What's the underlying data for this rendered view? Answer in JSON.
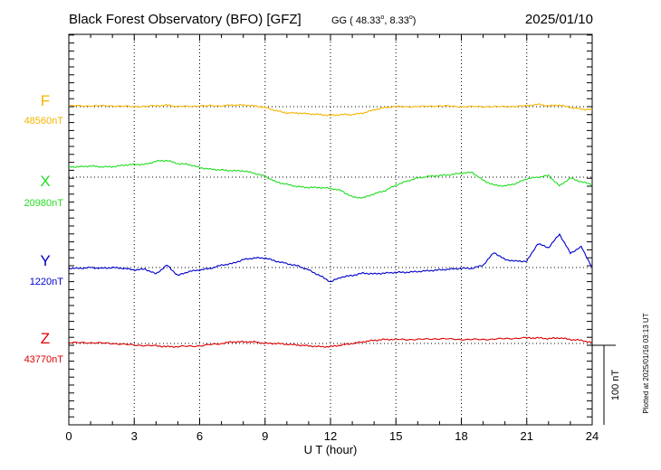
{
  "header": {
    "title": "Black Forest Observatory (BFO)  [GFZ]",
    "coord_prefix": "GG ( 48.33",
    "coord_mid": ",   8.33",
    "coord_end": ")",
    "degree": "o",
    "date": "2025/01/10"
  },
  "footer": {
    "plotted": "Plotted at 2025/01/16 03:13 UT"
  },
  "colors": {
    "F": "#f5b400",
    "X": "#22dd22",
    "Y": "#0000cc",
    "Z": "#dd0000",
    "axis": "#000000"
  },
  "chart_data": {
    "type": "line",
    "xlabel": "U T (hour)",
    "x_ticks": [
      "0",
      "3",
      "6",
      "9",
      "12",
      "15",
      "18",
      "21",
      "24"
    ],
    "xlim": [
      0,
      24
    ],
    "scale_bar_label": "100 nT",
    "scale_bar_value_nT": 100,
    "grid": true,
    "series": [
      {
        "name": "F",
        "baseline": "48560nT",
        "baseline_value": 48560,
        "x": [
          0,
          1,
          2,
          3,
          4,
          4.5,
          5,
          6,
          7,
          7.5,
          8,
          8.5,
          9,
          9.5,
          10,
          10.5,
          11,
          11.5,
          12,
          12.5,
          13,
          13.5,
          14,
          14.5,
          15,
          16,
          17,
          18,
          19,
          20,
          21,
          21.5,
          22,
          22.5,
          23,
          23.5,
          24
        ],
        "offset_nT": [
          1,
          1,
          1,
          0,
          1,
          2,
          0,
          1,
          1,
          2,
          2,
          1,
          -1,
          -5,
          -8,
          -8,
          -9,
          -10,
          -11,
          -10,
          -10,
          -8,
          -4,
          -1,
          0,
          0,
          1,
          0,
          0,
          0,
          1,
          3,
          1,
          2,
          -1,
          -3,
          -4
        ]
      },
      {
        "name": "X",
        "baseline": "20980nT",
        "baseline_value": 20980,
        "x": [
          0,
          0.5,
          1,
          1.5,
          2,
          2.5,
          3,
          3.5,
          4,
          4.5,
          5,
          5.5,
          6,
          6.5,
          7,
          7.5,
          8,
          8.5,
          9,
          9.5,
          10,
          10.5,
          11,
          11.5,
          12,
          12.5,
          13,
          13.5,
          14,
          14.5,
          15,
          15.5,
          16,
          16.5,
          17,
          17.5,
          18,
          18.5,
          19,
          19.5,
          20,
          20.5,
          21,
          21.5,
          22,
          22.5,
          23,
          23.5,
          24
        ],
        "offset_nT": [
          13,
          13,
          14,
          13,
          13,
          15,
          16,
          16,
          20,
          21,
          17,
          16,
          12,
          10,
          9,
          8,
          8,
          5,
          1,
          -6,
          -9,
          -12,
          -13,
          -13,
          -14,
          -17,
          -25,
          -26,
          -21,
          -17,
          -10,
          -5,
          -1,
          1,
          2,
          3,
          5,
          6,
          -4,
          -10,
          -11,
          -8,
          -2,
          0,
          2,
          -11,
          -1,
          -6,
          -9
        ]
      },
      {
        "name": "Y",
        "baseline": "1220nT",
        "baseline_value": 1220,
        "x": [
          0,
          0.5,
          1,
          1.5,
          2,
          2.5,
          3,
          3.5,
          4,
          4.5,
          5,
          5.5,
          6,
          6.5,
          7,
          7.5,
          8,
          8.5,
          9,
          9.5,
          10,
          10.5,
          11,
          11.5,
          12,
          12.5,
          13,
          13.5,
          14,
          14.5,
          15,
          15.5,
          16,
          16.5,
          17,
          17.5,
          18,
          18.5,
          19,
          19.5,
          20,
          20.5,
          21,
          21.5,
          22,
          22.5,
          23,
          23.5,
          24
        ],
        "offset_nT": [
          -1,
          -1,
          0,
          -1,
          0,
          -1,
          -3,
          -2,
          -8,
          3,
          -10,
          -5,
          -3,
          -1,
          3,
          5,
          10,
          12,
          12,
          8,
          5,
          2,
          -3,
          -10,
          -18,
          -12,
          -10,
          -7,
          -8,
          -7,
          -6,
          -6,
          -5,
          -4,
          -3,
          -2,
          -1,
          -1,
          3,
          19,
          10,
          8,
          8,
          30,
          25,
          42,
          18,
          26,
          0
        ]
      },
      {
        "name": "Z",
        "baseline": "43770nT",
        "baseline_value": 43770,
        "x": [
          0,
          1,
          2,
          3,
          4,
          4.5,
          5,
          6,
          7,
          7.5,
          8,
          8.5,
          9,
          9.5,
          10,
          10.5,
          11,
          11.5,
          12,
          12.5,
          13,
          13.5,
          14,
          14.5,
          15,
          16,
          17,
          18,
          19,
          20,
          21,
          21.5,
          22,
          22.5,
          23,
          23.5,
          24
        ],
        "offset_nT": [
          1,
          1,
          0,
          -2,
          -3,
          -4,
          -4,
          -3,
          0,
          2,
          2,
          2,
          0,
          0,
          -1,
          -2,
          -3,
          -4,
          -4,
          -2,
          0,
          2,
          4,
          5,
          5,
          5,
          6,
          5,
          5,
          6,
          7,
          7,
          6,
          7,
          5,
          4,
          1
        ]
      }
    ]
  }
}
